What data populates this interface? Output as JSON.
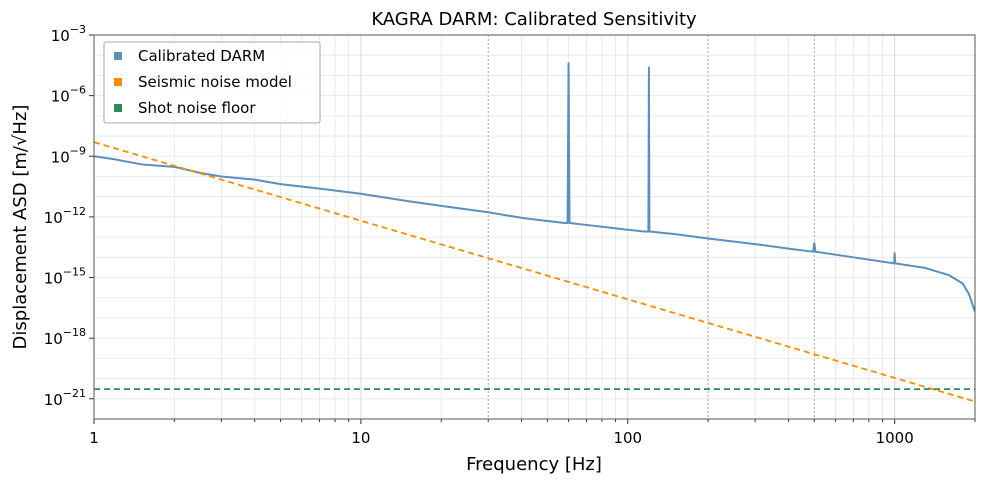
{
  "chart_data": {
    "type": "line",
    "title": "KAGRA DARM: Calibrated Sensitivity",
    "xlabel": "Frequency [Hz]",
    "ylabel": "Displacement ASD [m/√Hz]",
    "x_scale": "log",
    "y_scale": "log",
    "xlim": [
      1,
      2000
    ],
    "ylim": [
      1e-22,
      0.001
    ],
    "x_ticks": [
      {
        "value": 1,
        "label": "1"
      },
      {
        "value": 10,
        "label": "10"
      },
      {
        "value": 100,
        "label": "100"
      },
      {
        "value": 1000,
        "label": "1000"
      }
    ],
    "y_ticks": [
      {
        "value": 1e-21,
        "base": "10",
        "exp": "−21"
      },
      {
        "value": 1e-18,
        "base": "10",
        "exp": "−18"
      },
      {
        "value": 1e-15,
        "base": "10",
        "exp": "−15"
      },
      {
        "value": 1e-12,
        "base": "10",
        "exp": "−12"
      },
      {
        "value": 1e-09,
        "base": "10",
        "exp": "−9"
      },
      {
        "value": 1e-06,
        "base": "10",
        "exp": "−6"
      },
      {
        "value": 0.001,
        "base": "10",
        "exp": "−3"
      }
    ],
    "highlighted_vlines": [
      30,
      200,
      500
    ],
    "grid": true,
    "legend_position": "top-left",
    "series": [
      {
        "name": "Calibrated DARM",
        "color": "#5b8fc0",
        "style": "solid",
        "points": [
          [
            1,
            1e-09
          ],
          [
            1.2,
            7e-10
          ],
          [
            1.5,
            4e-10
          ],
          [
            1.8,
            3.3e-10
          ],
          [
            2,
            3e-10
          ],
          [
            2.5,
            1.5e-10
          ],
          [
            3,
            1e-10
          ],
          [
            4,
            7e-11
          ],
          [
            5,
            4.2e-11
          ],
          [
            7,
            2.5e-11
          ],
          [
            10,
            1.4e-11
          ],
          [
            15,
            6e-12
          ],
          [
            20,
            3.5e-12
          ],
          [
            30,
            1.7e-12
          ],
          [
            40,
            9e-13
          ],
          [
            50,
            6.3e-13
          ],
          [
            58,
            5e-13
          ],
          [
            59.5,
            5e-13
          ],
          [
            60,
            4e-05
          ],
          [
            60.5,
            5e-13
          ],
          [
            70,
            4e-13
          ],
          [
            100,
            2.3e-13
          ],
          [
            115,
            1.9e-13
          ],
          [
            119.5,
            1.9e-13
          ],
          [
            120,
            2.5e-05
          ],
          [
            120.5,
            1.9e-13
          ],
          [
            150,
            1.4e-13
          ],
          [
            200,
            8.5e-14
          ],
          [
            300,
            4.5e-14
          ],
          [
            400,
            2.7e-14
          ],
          [
            495,
            1.9e-14
          ],
          [
            500,
            5e-14
          ],
          [
            505,
            1.9e-14
          ],
          [
            700,
            1e-14
          ],
          [
            995,
            5e-15
          ],
          [
            1000,
            1.6e-14
          ],
          [
            1005,
            5e-15
          ],
          [
            1300,
            3e-15
          ],
          [
            1600,
            1.3e-15
          ],
          [
            1800,
            5e-16
          ],
          [
            1900,
            1.5e-16
          ],
          [
            2000,
            2e-17
          ]
        ]
      },
      {
        "name": "Seismic noise model",
        "color": "#ff8c00",
        "style": "dashed",
        "points": [
          [
            1,
            5e-09
          ],
          [
            2000,
            7.3e-22
          ]
        ]
      },
      {
        "name": "Shot noise floor",
        "color": "#2e8b57",
        "style": "dashed",
        "points": [
          [
            1,
            3e-21
          ],
          [
            2000,
            3e-21
          ]
        ]
      }
    ]
  }
}
